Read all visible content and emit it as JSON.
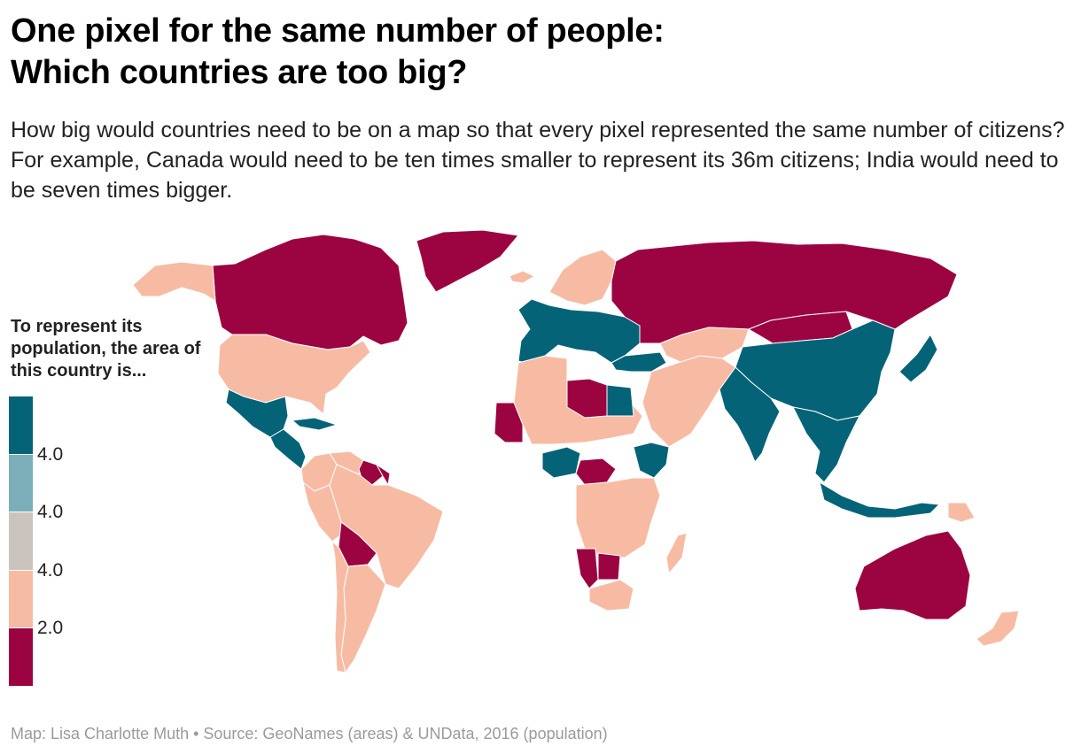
{
  "header": {
    "title_line1": "One pixel for the same number of people:",
    "title_line2": "Which countries are too big?",
    "subtitle": "How big would countries need to be on a map so that every pixel represented the same number of citizens? For example, Canada would need to be ten times smaller to represent its 36m citizens; India would need to be seven times bigger."
  },
  "legend": {
    "title": "To represent its population, the area of this country is...",
    "bins": [
      {
        "color": "#056378"
      },
      {
        "color": "#7aafb9"
      },
      {
        "color": "#cbc3bd"
      },
      {
        "color": "#f7bba4"
      },
      {
        "color": "#9b0441"
      }
    ],
    "ticks": [
      "4.0",
      "4.0",
      "4.0",
      "2.0"
    ]
  },
  "map": {
    "colors": {
      "too_small": "#056378",
      "too_big": "#9b0441",
      "moderate_big": "#f7bba4",
      "border": "#ffffff"
    },
    "countries": [
      {
        "name": "Canada",
        "bin": "too_big"
      },
      {
        "name": "Greenland",
        "bin": "too_big"
      },
      {
        "name": "Alaska",
        "bin": "moderate_big"
      },
      {
        "name": "United States",
        "bin": "moderate_big"
      },
      {
        "name": "Mexico",
        "bin": "too_small"
      },
      {
        "name": "Central America",
        "bin": "too_small"
      },
      {
        "name": "Cuba",
        "bin": "too_small"
      },
      {
        "name": "Colombia",
        "bin": "moderate_big"
      },
      {
        "name": "Venezuela",
        "bin": "moderate_big"
      },
      {
        "name": "Guyana",
        "bin": "too_big"
      },
      {
        "name": "Suriname",
        "bin": "too_big"
      },
      {
        "name": "Brazil",
        "bin": "moderate_big"
      },
      {
        "name": "Peru",
        "bin": "moderate_big"
      },
      {
        "name": "Bolivia",
        "bin": "too_big"
      },
      {
        "name": "Argentina",
        "bin": "moderate_big"
      },
      {
        "name": "Chile",
        "bin": "moderate_big"
      },
      {
        "name": "Western Europe",
        "bin": "too_small"
      },
      {
        "name": "Scandinavia",
        "bin": "moderate_big"
      },
      {
        "name": "Iceland",
        "bin": "moderate_big"
      },
      {
        "name": "Russia",
        "bin": "too_big"
      },
      {
        "name": "Kazakhstan",
        "bin": "moderate_big"
      },
      {
        "name": "Mongolia",
        "bin": "too_big"
      },
      {
        "name": "China",
        "bin": "too_small"
      },
      {
        "name": "India",
        "bin": "too_small"
      },
      {
        "name": "Middle East",
        "bin": "moderate_big"
      },
      {
        "name": "Turkey",
        "bin": "too_small"
      },
      {
        "name": "North Africa",
        "bin": "moderate_big"
      },
      {
        "name": "Libya",
        "bin": "too_big"
      },
      {
        "name": "Egypt",
        "bin": "too_small"
      },
      {
        "name": "Mauritania",
        "bin": "too_big"
      },
      {
        "name": "Nigeria",
        "bin": "too_small"
      },
      {
        "name": "Central African Republic",
        "bin": "too_big"
      },
      {
        "name": "Ethiopia",
        "bin": "too_small"
      },
      {
        "name": "Central Africa",
        "bin": "moderate_big"
      },
      {
        "name": "Namibia",
        "bin": "too_big"
      },
      {
        "name": "Botswana",
        "bin": "too_big"
      },
      {
        "name": "South Africa",
        "bin": "moderate_big"
      },
      {
        "name": "Madagascar",
        "bin": "moderate_big"
      },
      {
        "name": "Southeast Asia",
        "bin": "too_small"
      },
      {
        "name": "Indonesia",
        "bin": "too_small"
      },
      {
        "name": "Japan",
        "bin": "too_small"
      },
      {
        "name": "Papua New Guinea",
        "bin": "moderate_big"
      },
      {
        "name": "Australia",
        "bin": "too_big"
      },
      {
        "name": "New Zealand",
        "bin": "moderate_big"
      }
    ]
  },
  "footer": {
    "credit": "Map: Lisa Charlotte Muth • Source: GeoNames (areas) & UNData, 2016 (population)"
  }
}
